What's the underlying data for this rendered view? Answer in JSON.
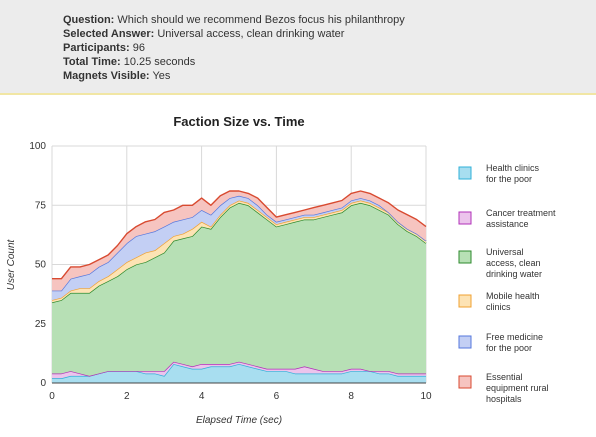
{
  "info": {
    "question_label": "Question:",
    "question": "Which should we recommend Bezos focus his philanthropy",
    "selected_label": "Selected Answer:",
    "selected": "Universal access, clean drinking water",
    "participants_label": "Participants:",
    "participants": "96",
    "time_label": "Total Time:",
    "time": "10.25 seconds",
    "magnets_label": "Magnets Visible:",
    "magnets": "Yes"
  },
  "chart_data": {
    "type": "area",
    "stacked": true,
    "title": "Faction Size vs. Time",
    "xlabel": "Elapsed Time (sec)",
    "ylabel": "User Count",
    "xlim": [
      0,
      10
    ],
    "ylim": [
      0,
      100
    ],
    "xticks": [
      0,
      2,
      4,
      6,
      8,
      10
    ],
    "yticks": [
      0,
      25,
      50,
      75,
      100
    ],
    "grid": true,
    "legend_position": "right",
    "x": [
      0,
      0.25,
      0.5,
      0.75,
      1,
      1.25,
      1.5,
      1.75,
      2,
      2.25,
      2.5,
      2.75,
      3,
      3.25,
      3.5,
      3.75,
      4,
      4.25,
      4.5,
      4.75,
      5,
      5.25,
      5.5,
      5.75,
      6,
      6.25,
      6.5,
      6.75,
      7,
      7.25,
      7.5,
      7.75,
      8,
      8.25,
      8.5,
      8.75,
      9,
      9.25,
      9.5,
      9.75,
      10
    ],
    "series": [
      {
        "name": "Health clinics for the poor",
        "fill": "#a8def0",
        "stroke": "#2fb0d8",
        "values": [
          2,
          2,
          3,
          3,
          3,
          4,
          5,
          5,
          5,
          5,
          4,
          4,
          3,
          8,
          7,
          6,
          6,
          7,
          7,
          7,
          8,
          7,
          6,
          5,
          5,
          5,
          4,
          4,
          4,
          4,
          4,
          4,
          5,
          5,
          5,
          4,
          4,
          3,
          3,
          3,
          3
        ]
      },
      {
        "name": "Cancer treatment assistance",
        "fill": "#ecc4ec",
        "stroke": "#b030b8",
        "values": [
          2,
          2,
          2,
          1,
          0,
          0,
          0,
          0,
          0,
          0,
          1,
          1,
          2,
          1,
          1,
          1,
          2,
          1,
          1,
          1,
          1,
          1,
          1,
          1,
          1,
          1,
          2,
          3,
          2,
          1,
          1,
          1,
          1,
          1,
          0,
          1,
          1,
          1,
          1,
          1,
          1
        ]
      },
      {
        "name": "Universal access, clean drinking water",
        "fill": "#b7e0b5",
        "stroke": "#2d8a2d",
        "values": [
          30,
          31,
          33,
          34,
          35,
          37,
          38,
          40,
          43,
          45,
          46,
          48,
          50,
          51,
          53,
          55,
          58,
          57,
          62,
          66,
          67,
          67,
          65,
          63,
          60,
          61,
          62,
          62,
          63,
          65,
          66,
          67,
          69,
          70,
          70,
          68,
          66,
          63,
          60,
          58,
          55
        ]
      },
      {
        "name": "Mobile health clinics",
        "fill": "#fde3b4",
        "stroke": "#f0a030",
        "values": [
          1,
          1,
          1,
          2,
          2,
          2,
          2,
          3,
          3,
          3,
          4,
          3,
          4,
          2,
          2,
          3,
          2,
          1,
          1,
          1,
          1,
          1,
          1,
          1,
          1,
          1,
          1,
          1,
          1,
          1,
          1,
          1,
          1,
          1,
          1,
          1,
          1,
          1,
          1,
          1,
          1
        ]
      },
      {
        "name": "Free medicine for the poor",
        "fill": "#c3cff4",
        "stroke": "#5577dd",
        "values": [
          4,
          3,
          5,
          5,
          6,
          6,
          6,
          7,
          8,
          9,
          8,
          8,
          7,
          6,
          6,
          5,
          5,
          5,
          4,
          3,
          2,
          2,
          2,
          1,
          1,
          1,
          1,
          1,
          1,
          1,
          1,
          1,
          1,
          1,
          1,
          1,
          0,
          0,
          0,
          0,
          0
        ]
      },
      {
        "name": "Essential equipment rural hospitals",
        "fill": "#f6c4c0",
        "stroke": "#d84a30",
        "values": [
          5,
          5,
          5,
          4,
          4,
          3,
          3,
          3,
          4,
          4,
          5,
          5,
          6,
          5,
          6,
          5,
          5,
          4,
          4,
          3,
          2,
          2,
          3,
          3,
          2,
          2,
          2,
          2,
          3,
          3,
          3,
          3,
          3,
          3,
          3,
          3,
          4,
          5,
          6,
          6,
          6
        ]
      }
    ]
  }
}
